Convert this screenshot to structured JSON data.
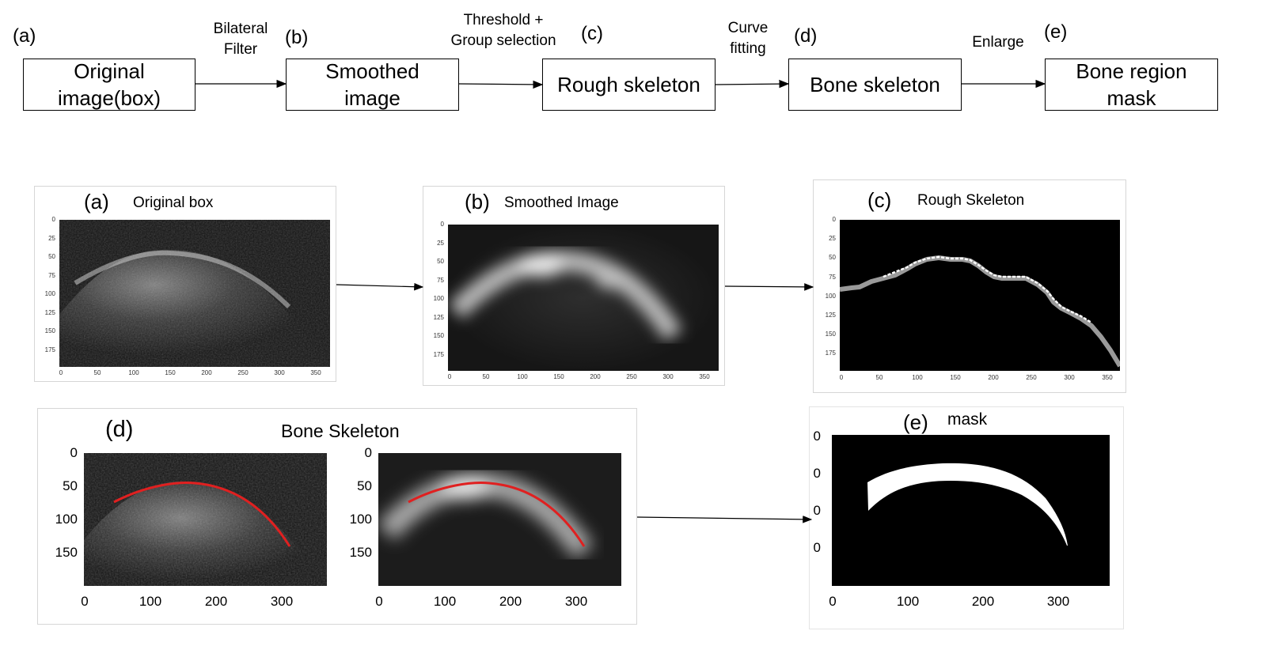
{
  "pipeline": {
    "steps": [
      {
        "letter": "(a)",
        "label_line1": "Original",
        "label_line2": "image(box)"
      },
      {
        "letter": "(b)",
        "label_line1": "Smoothed",
        "label_line2": "image"
      },
      {
        "letter": "(c)",
        "label_line1": "Rough skeleton",
        "label_line2": ""
      },
      {
        "letter": "(d)",
        "label_line1": "Bone skeleton",
        "label_line2": ""
      },
      {
        "letter": "(e)",
        "label_line1": "Bone region",
        "label_line2": "mask"
      }
    ],
    "transitions": [
      {
        "line1": "Bilateral",
        "line2": "Filter"
      },
      {
        "line1": "Threshold +",
        "line2": "Group selection"
      },
      {
        "line1": "Curve",
        "line2": "fitting"
      },
      {
        "line1": "Enlarge",
        "line2": ""
      }
    ]
  },
  "panels": {
    "a": {
      "letter": "(a)",
      "title": "Original box",
      "yticks": [
        "0",
        "25",
        "50",
        "75",
        "100",
        "125",
        "150",
        "175"
      ],
      "xticks": [
        "0",
        "50",
        "100",
        "150",
        "200",
        "250",
        "300",
        "350"
      ]
    },
    "b": {
      "letter": "(b)",
      "title": "Smoothed Image",
      "yticks": [
        "0",
        "25",
        "50",
        "75",
        "100",
        "125",
        "150",
        "175"
      ],
      "xticks": [
        "0",
        "50",
        "100",
        "150",
        "200",
        "250",
        "300",
        "350"
      ]
    },
    "c": {
      "letter": "(c)",
      "title": "Rough Skeleton",
      "yticks": [
        "0",
        "25",
        "50",
        "75",
        "100",
        "125",
        "150",
        "175"
      ],
      "xticks": [
        "0",
        "50",
        "100",
        "150",
        "200",
        "250",
        "300",
        "350"
      ]
    },
    "d": {
      "letter": "(d)",
      "title": "Bone Skeleton",
      "yticks": [
        "0",
        "50",
        "100",
        "150"
      ],
      "xticks": [
        "0",
        "100",
        "200",
        "300"
      ]
    },
    "e": {
      "letter": "(e)",
      "title": "mask",
      "yticks": [
        "0",
        "0",
        "0",
        "0"
      ],
      "xticks": [
        "0",
        "100",
        "200",
        "300"
      ]
    }
  },
  "colors": {
    "curve": "#e02020",
    "mask_fg": "#ffffff",
    "mask_bg": "#000000"
  }
}
